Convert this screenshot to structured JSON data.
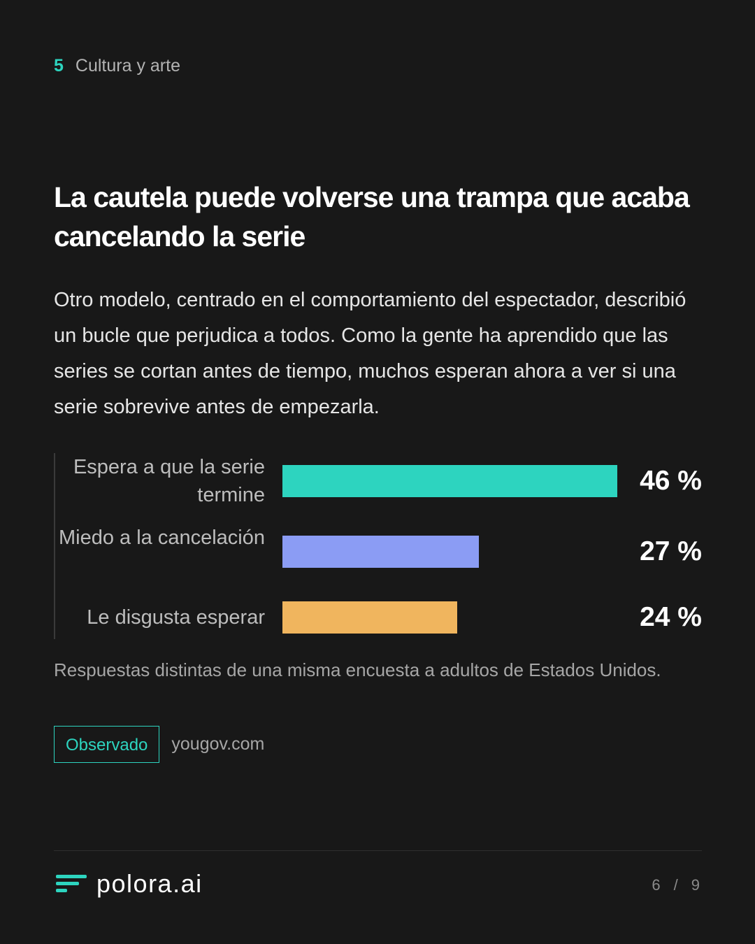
{
  "section": {
    "number": "5",
    "title": "Cultura y arte"
  },
  "headline": "La cautela puede volverse una trampa que acaba cancelando la serie",
  "body": "Otro modelo, centrado en el comportamiento del espectador, describió un bucle que perjudica a todos. Como la gente ha aprendido que las series se cortan antes de tiempo, muchos esperan ahora a ver si una serie sobrevive antes de empezarla.",
  "chart_data": {
    "type": "bar",
    "orientation": "horizontal",
    "categories": [
      "Espera a que la serie termine",
      "Miedo a la cancelación",
      "Le disgusta esperar"
    ],
    "values": [
      46,
      27,
      24
    ],
    "value_labels": [
      "46 %",
      "27 %",
      "24 %"
    ],
    "colors": [
      "#2dd4bf",
      "#8b9cf4",
      "#f0b55e"
    ],
    "xlim": [
      0,
      46
    ]
  },
  "caption": "Respuestas distintas de una misma encuesta a adultos de Estados Unidos.",
  "badge": "Observado",
  "source": "yougov.com",
  "brand": {
    "name": "polora.ai",
    "color": "#2dd4bf"
  },
  "pager": {
    "current": "6",
    "separator": "/",
    "total": "9"
  }
}
